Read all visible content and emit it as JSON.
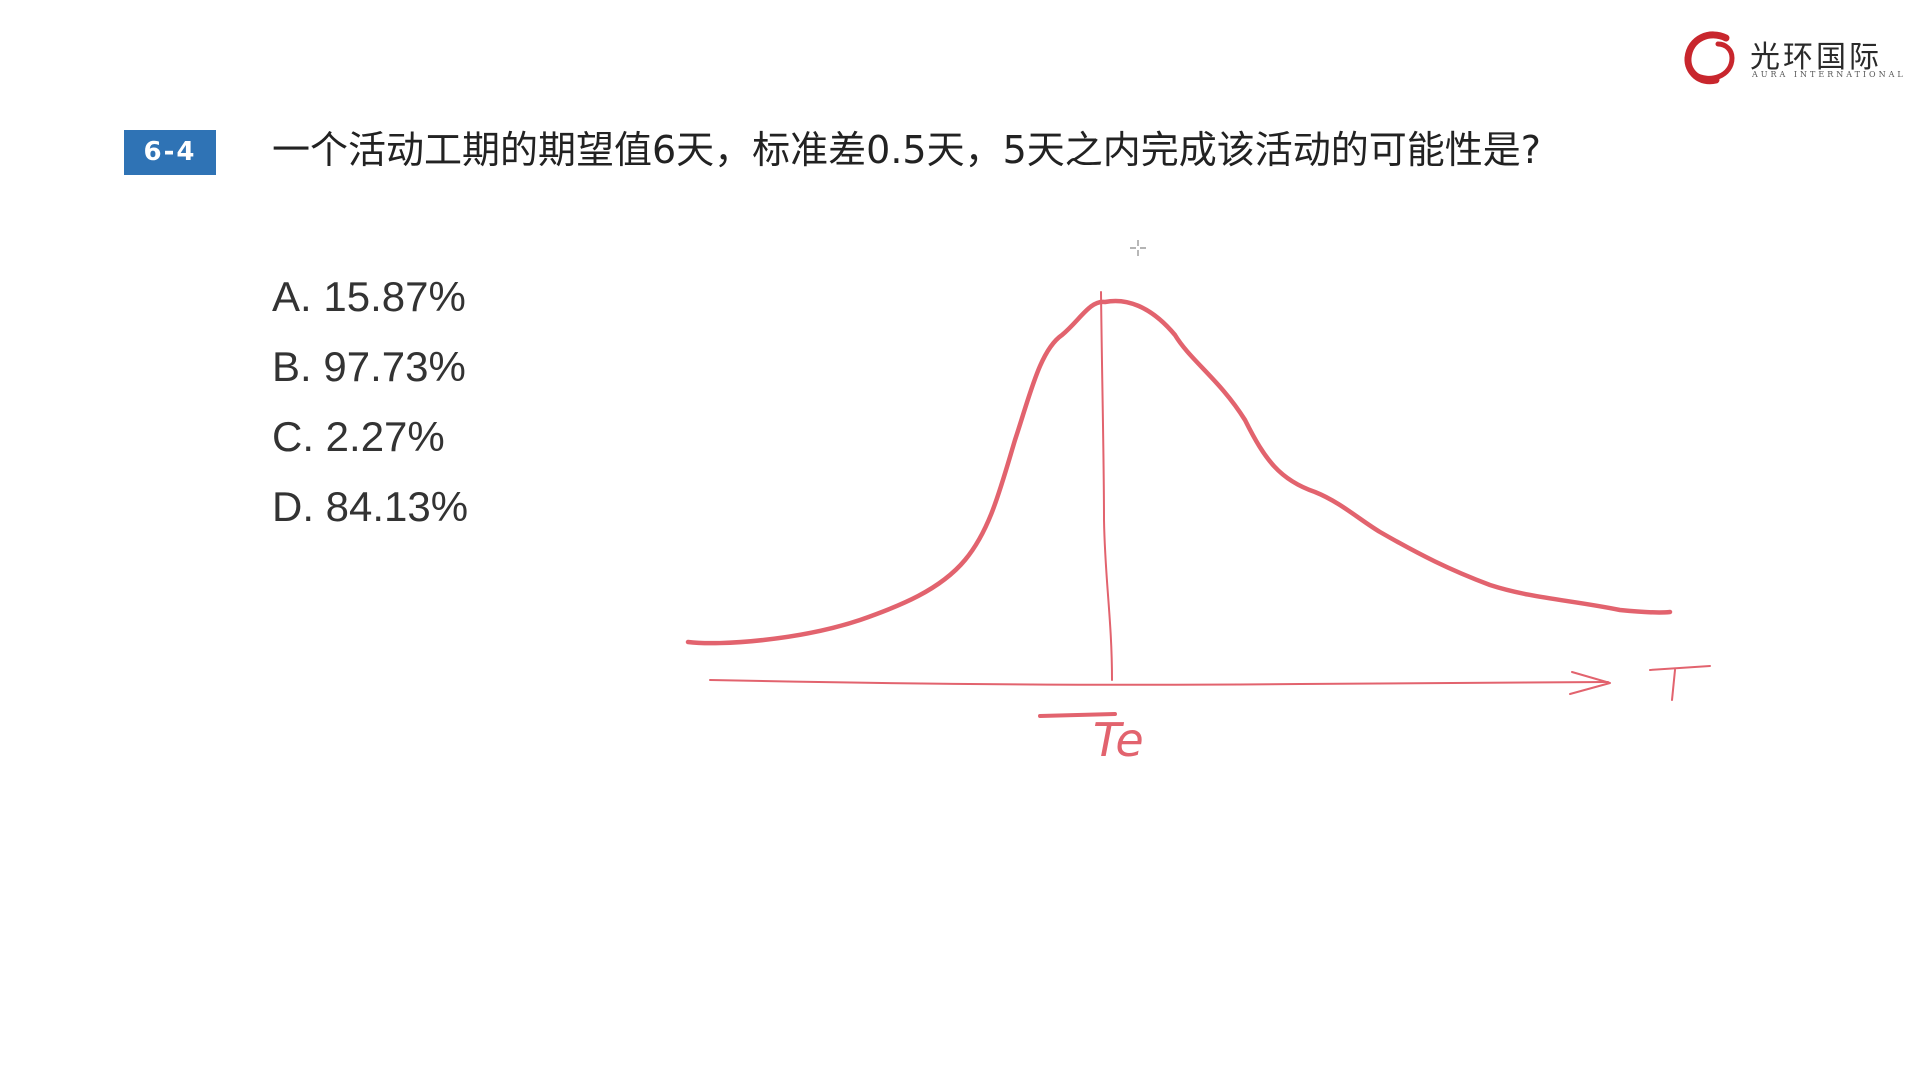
{
  "logo": {
    "name_cn": "光环国际",
    "name_en": "AURA INTERNATIONAL"
  },
  "question": {
    "number": "6-4",
    "text": "一个活动工期的期望值6天，标准差0.5天，5天之内完成该活动的可能性是?"
  },
  "options": [
    {
      "label": "A. 15.87%"
    },
    {
      "label": "B. 97.73%"
    },
    {
      "label": "C. 2.27%"
    },
    {
      "label": "D. 84.13%"
    }
  ],
  "sketch": {
    "peak_label": "Te",
    "axis_label": "T",
    "ink_color": "#e2636e"
  },
  "colors": {
    "badge": "#2f73b5",
    "logo_red": "#c8262d",
    "text": "#222222"
  }
}
